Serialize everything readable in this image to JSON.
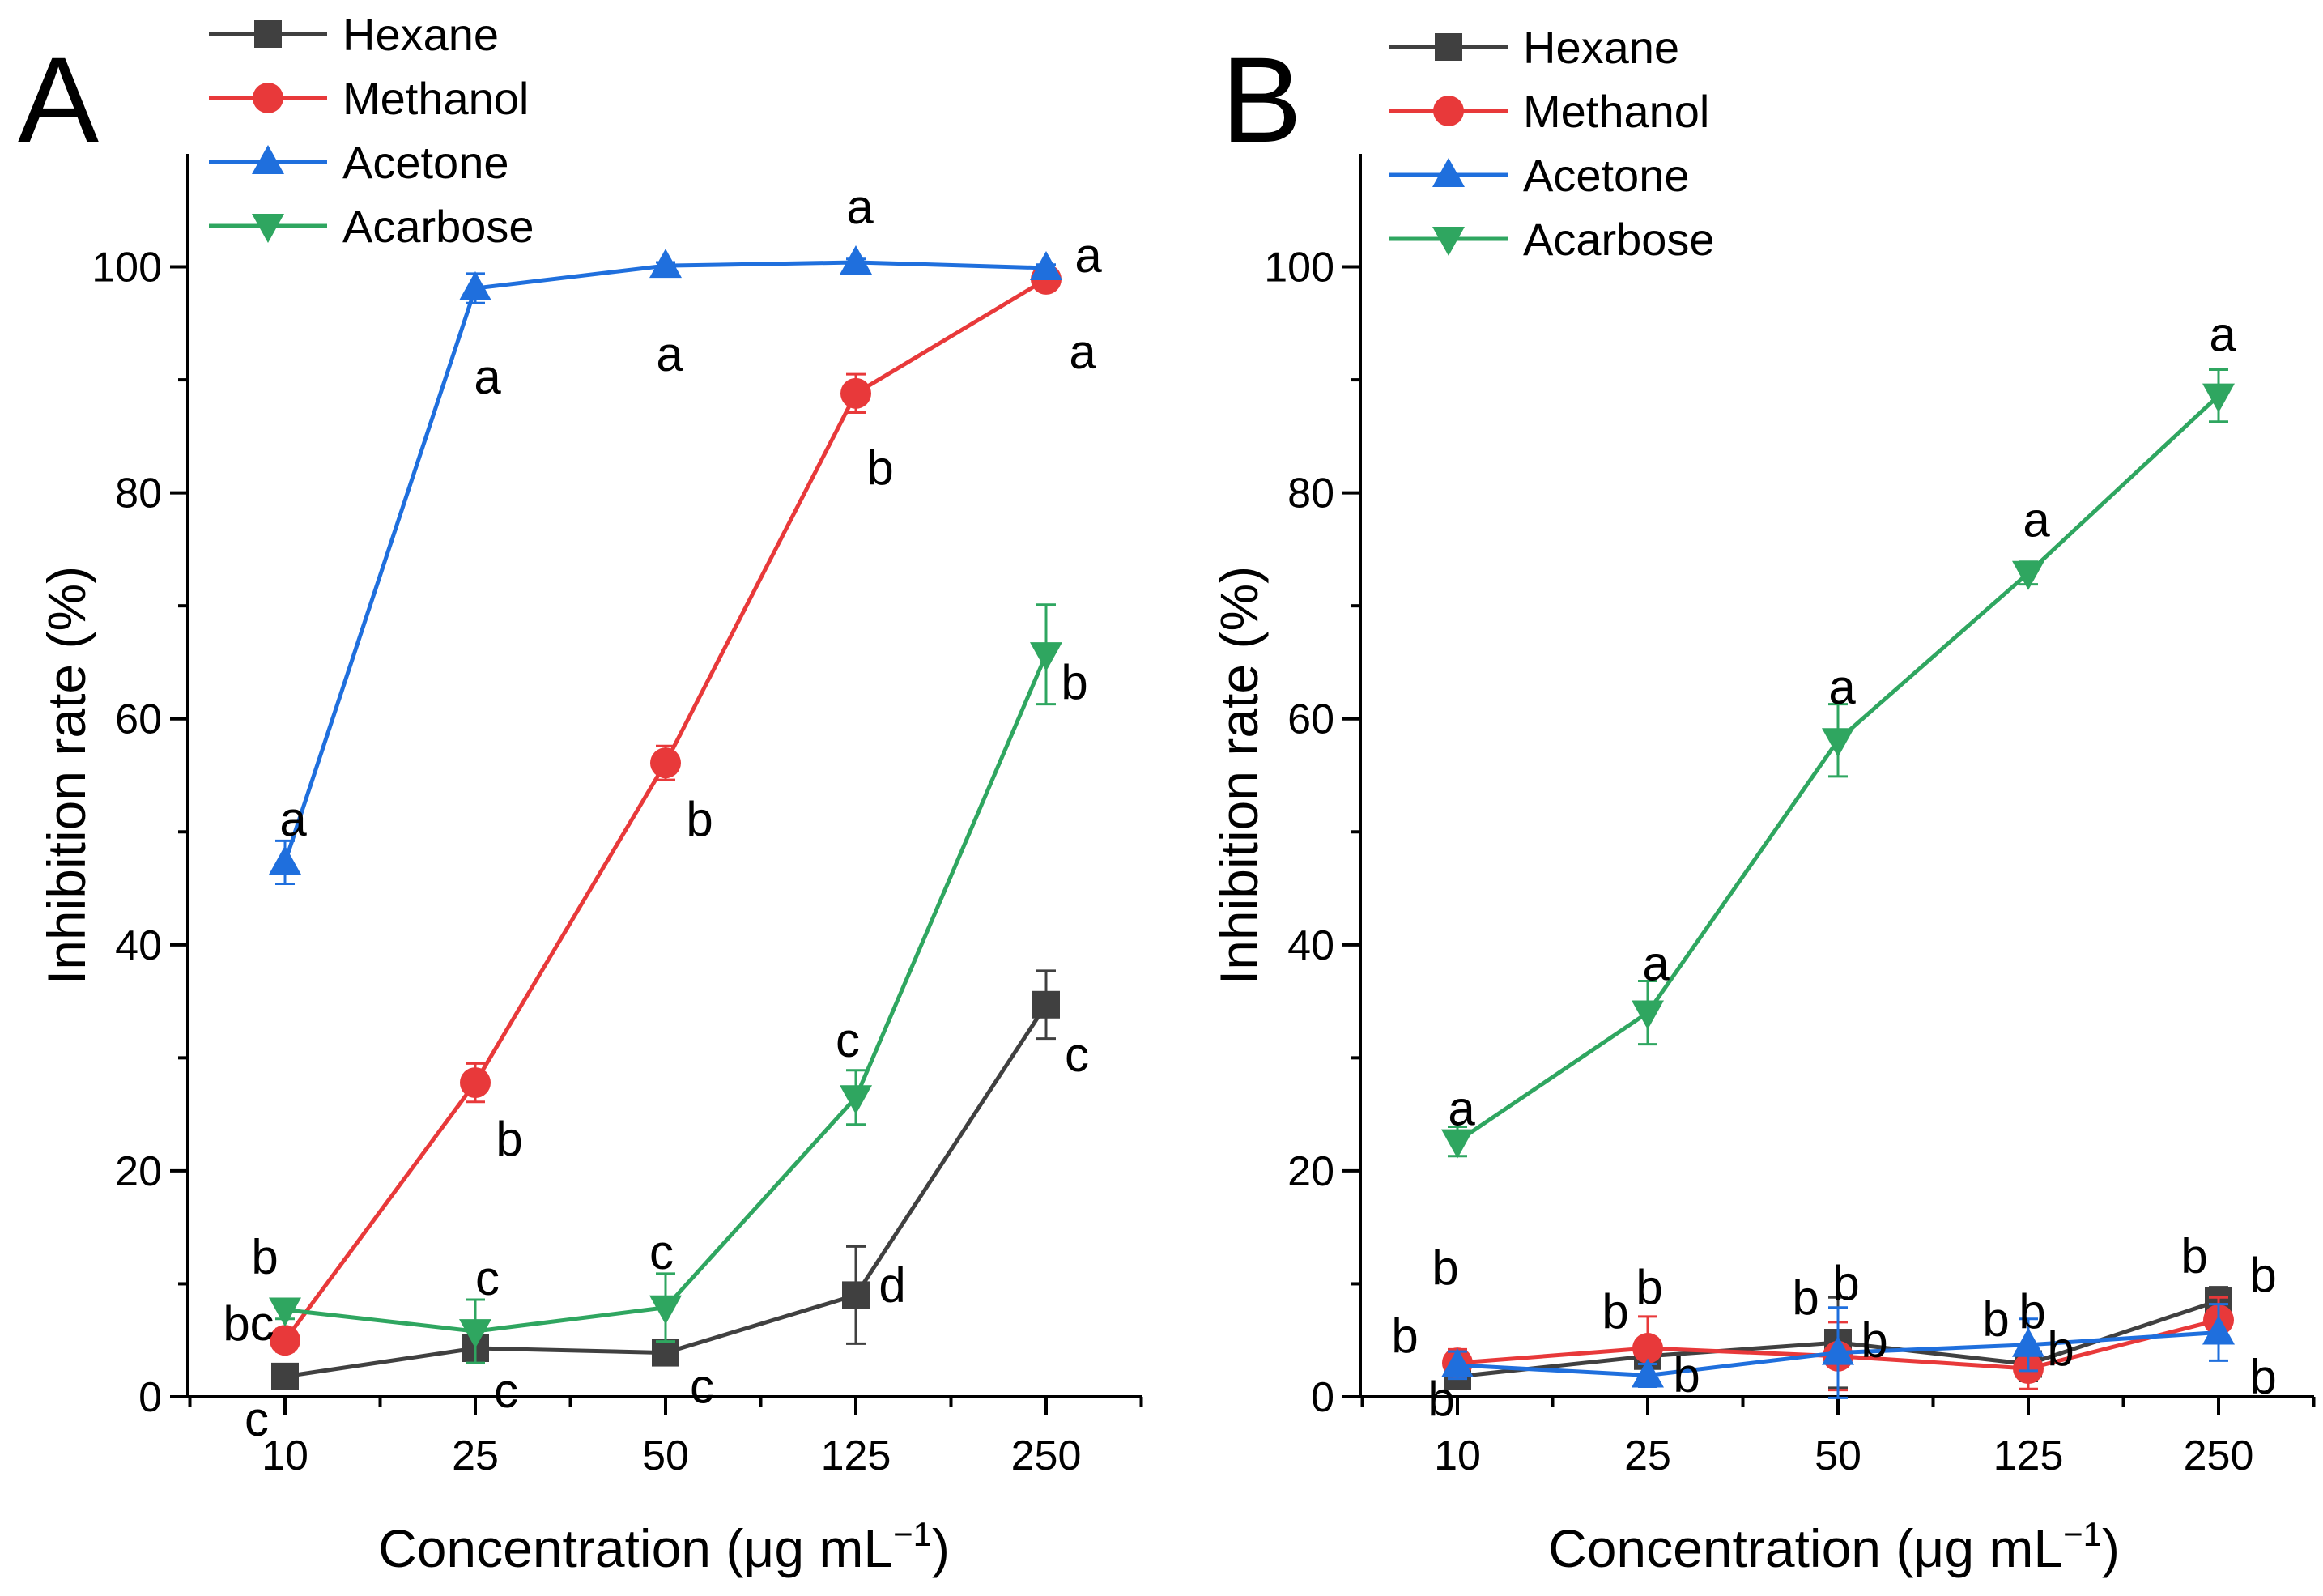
{
  "chart_data": [
    {
      "type": "line",
      "panel_label": "A",
      "categories": [
        "10",
        "25",
        "50",
        "125",
        "250"
      ],
      "xlabel": "Concentration (μg mL⁻¹)",
      "xlabel_main": "Concentration (μg mL",
      "xlabel_sup": "−1",
      "xlabel_close": ")",
      "ylabel": "Inhibition rate (%)",
      "ylim": [
        0,
        110
      ],
      "yticks": [
        0,
        20,
        40,
        60,
        80,
        100
      ],
      "ytick_labels": [
        "0",
        "20",
        "40",
        "60",
        "80",
        "100"
      ],
      "legend_position": "top-left",
      "series": [
        {
          "name": "Hexane",
          "color": "#404040",
          "marker": "square",
          "values": [
            1.8,
            4.3,
            3.9,
            9.0,
            34.7
          ],
          "errors": [
            1.0,
            0.8,
            0.8,
            4.3,
            3.0
          ],
          "letters": [
            "c",
            "c",
            "c",
            "d",
            "c"
          ]
        },
        {
          "name": "Methanol",
          "color": "#e8393a",
          "marker": "circle",
          "values": [
            5.0,
            27.8,
            56.1,
            88.8,
            98.9
          ],
          "errors": [
            1.0,
            1.7,
            1.5,
            1.7,
            0.4
          ],
          "letters": [
            "bc",
            "b",
            "b",
            "b",
            "a"
          ]
        },
        {
          "name": "Acetone",
          "color": "#1f6fdd",
          "marker": "triangle-up",
          "values": [
            47.3,
            98.1,
            100.1,
            100.4,
            99.9
          ],
          "errors": [
            1.9,
            1.3,
            0.3,
            0.3,
            0.3
          ],
          "letters": [
            "a",
            "a",
            "a",
            "a",
            "a"
          ]
        },
        {
          "name": "Acarbose",
          "color": "#2fa660",
          "marker": "triangle-down",
          "values": [
            7.7,
            5.8,
            7.9,
            26.5,
            65.7
          ],
          "errors": [
            0.8,
            2.8,
            3.0,
            2.4,
            4.4
          ],
          "letters": [
            "b",
            "c",
            "c",
            "c",
            "b"
          ]
        }
      ]
    },
    {
      "type": "line",
      "panel_label": "B",
      "categories": [
        "10",
        "25",
        "50",
        "125",
        "250"
      ],
      "xlabel": "Concentration (μg mL⁻¹)",
      "xlabel_main": "Concentration (μg mL",
      "xlabel_sup": "−1",
      "xlabel_close": ")",
      "ylabel": "Inhibition rate (%)",
      "ylim": [
        0,
        110
      ],
      "yticks": [
        0,
        20,
        40,
        60,
        80,
        100
      ],
      "ytick_labels": [
        "0",
        "20",
        "40",
        "60",
        "80",
        "100"
      ],
      "legend_position": "top-left",
      "series": [
        {
          "name": "Hexane",
          "color": "#404040",
          "marker": "square",
          "values": [
            1.8,
            3.6,
            4.8,
            2.9,
            8.5
          ],
          "errors": [
            0.8,
            1.0,
            4.0,
            1.5,
            1.2
          ],
          "letters": [
            "b",
            "b",
            "b",
            "b",
            "b"
          ]
        },
        {
          "name": "Methanol",
          "color": "#e8393a",
          "marker": "circle",
          "values": [
            3.0,
            4.3,
            3.6,
            2.5,
            6.8
          ],
          "errors": [
            1.2,
            2.8,
            3.0,
            1.8,
            2.0
          ],
          "letters": [
            "b",
            "b",
            "b",
            "b",
            "b"
          ]
        },
        {
          "name": "Acetone",
          "color": "#1f6fdd",
          "marker": "triangle-up",
          "values": [
            2.8,
            1.9,
            3.9,
            4.6,
            5.7
          ],
          "errors": [
            1.2,
            1.0,
            4.0,
            2.3,
            2.5
          ],
          "letters": [
            "b",
            "b",
            "b",
            "b",
            "b"
          ]
        },
        {
          "name": "Acarbose",
          "color": "#2fa660",
          "marker": "triangle-down",
          "values": [
            22.6,
            34.0,
            58.1,
            72.9,
            88.6
          ],
          "errors": [
            1.3,
            2.8,
            3.2,
            1.0,
            2.3
          ],
          "letters": [
            "a",
            "a",
            "a",
            "a",
            "a"
          ]
        }
      ]
    }
  ]
}
